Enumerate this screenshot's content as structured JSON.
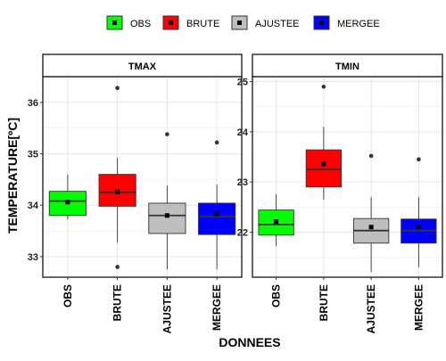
{
  "chart_data": {
    "type": "boxplot",
    "xlabel": "DONNEES",
    "ylabel": "TEMPERATURE[ºC]",
    "legend": {
      "placement": "top",
      "items": [
        {
          "name": "OBS",
          "color": "#00ff00"
        },
        {
          "name": "BRUTE",
          "color": "#ff0000"
        },
        {
          "name": "AJUSTEE",
          "color": "#bebebe"
        },
        {
          "name": "MERGEE",
          "color": "#0000ff"
        }
      ]
    },
    "categories": [
      "OBS",
      "BRUTE",
      "AJUSTEE",
      "MERGEE"
    ],
    "grid": true,
    "panels": [
      {
        "title": "TMAX",
        "ylim": [
          32.6,
          36.5
        ],
        "yticks": [
          33,
          34,
          35,
          36
        ],
        "boxes": [
          {
            "name": "OBS",
            "color": "#00ff00",
            "whisker_low": 33.72,
            "q1": 33.8,
            "median": 34.08,
            "q3": 34.27,
            "whisker_high": 34.6,
            "mean": 34.06,
            "outliers": []
          },
          {
            "name": "BRUTE",
            "color": "#ff0000",
            "whisker_low": 33.27,
            "q1": 33.98,
            "median": 34.25,
            "q3": 34.6,
            "whisker_high": 34.92,
            "mean": 34.26,
            "outliers": [
              36.28,
              32.8
            ]
          },
          {
            "name": "AJUSTEE",
            "color": "#bebebe",
            "whisker_low": 32.75,
            "q1": 33.45,
            "median": 33.8,
            "q3": 34.04,
            "whisker_high": 34.38,
            "mean": 33.8,
            "outliers": [
              35.38
            ]
          },
          {
            "name": "MERGEE",
            "color": "#0000ff",
            "whisker_low": 32.75,
            "q1": 33.43,
            "median": 33.78,
            "q3": 34.04,
            "whisker_high": 34.4,
            "mean": 33.83,
            "outliers": [
              35.22
            ]
          }
        ]
      },
      {
        "title": "TMIN",
        "ylim": [
          21.1,
          25.1
        ],
        "yticks": [
          22,
          23,
          24,
          25
        ],
        "boxes": [
          {
            "name": "OBS",
            "color": "#00ff00",
            "whisker_low": 21.72,
            "q1": 21.94,
            "median": 22.15,
            "q3": 22.44,
            "whisker_high": 22.76,
            "mean": 22.21,
            "outliers": []
          },
          {
            "name": "BRUTE",
            "color": "#ff0000",
            "whisker_low": 22.65,
            "q1": 22.9,
            "median": 23.25,
            "q3": 23.64,
            "whisker_high": 24.1,
            "mean": 23.36,
            "outliers": [
              24.9
            ]
          },
          {
            "name": "AJUSTEE",
            "color": "#bebebe",
            "whisker_low": 21.2,
            "q1": 21.78,
            "median": 22.03,
            "q3": 22.27,
            "whisker_high": 22.7,
            "mean": 22.1,
            "outliers": [
              23.52
            ]
          },
          {
            "name": "MERGEE",
            "color": "#0000ff",
            "whisker_low": 21.3,
            "q1": 21.78,
            "median": 22.03,
            "q3": 22.26,
            "whisker_high": 22.7,
            "mean": 22.1,
            "outliers": [
              23.45
            ]
          }
        ]
      }
    ]
  }
}
